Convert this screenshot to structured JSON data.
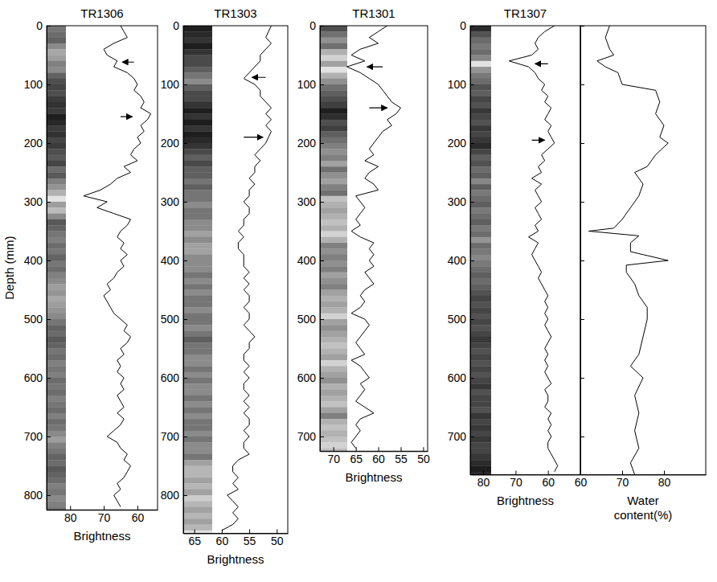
{
  "chart_data": [
    {
      "type": "corelog",
      "title": "TR1306",
      "x_label": "Brightness",
      "y_label": "Depth (mm)",
      "color": "#000000",
      "xlim": [
        87,
        54
      ],
      "xticks": [
        80,
        70,
        60
      ],
      "ylim": [
        0,
        825
      ],
      "yticks": [
        0,
        100,
        200,
        300,
        400,
        500,
        600,
        700,
        800
      ],
      "depth": [
        0,
        10,
        20,
        30,
        40,
        50,
        60,
        70,
        80,
        90,
        100,
        110,
        120,
        130,
        140,
        150,
        160,
        170,
        180,
        190,
        200,
        210,
        220,
        230,
        240,
        250,
        260,
        270,
        280,
        290,
        300,
        310,
        320,
        330,
        340,
        350,
        360,
        370,
        380,
        390,
        400,
        410,
        420,
        430,
        440,
        450,
        460,
        470,
        480,
        490,
        500,
        510,
        520,
        530,
        540,
        550,
        560,
        570,
        580,
        590,
        600,
        610,
        620,
        630,
        640,
        650,
        660,
        670,
        680,
        690,
        700,
        710,
        720,
        730,
        740,
        750,
        760,
        770,
        780,
        790,
        800,
        810,
        820
      ],
      "values": [
        65,
        64,
        63,
        67,
        70,
        69,
        66,
        67,
        63,
        61,
        60,
        61,
        59,
        58,
        59,
        56,
        57,
        59,
        58,
        60,
        59,
        61,
        62,
        60,
        64,
        62,
        66,
        68,
        71,
        76,
        69,
        72,
        67,
        62,
        63,
        65,
        66,
        64,
        65,
        63,
        65,
        64,
        66,
        67,
        69,
        68,
        70,
        69,
        68,
        67,
        65,
        63,
        64,
        62,
        63,
        65,
        64,
        66,
        65,
        66,
        64,
        65,
        64,
        66,
        65,
        64,
        66,
        64,
        65,
        67,
        69,
        66,
        65,
        63,
        64,
        62,
        63,
        64,
        66,
        65,
        67,
        66,
        65
      ],
      "arrows": [
        {
          "y": 62,
          "x_from": 61,
          "x_to": 64.5
        },
        {
          "y": 155,
          "x_from": 65,
          "x_to": 61.5
        }
      ]
    },
    {
      "type": "corelog",
      "title": "TR1303",
      "x_label": "Brightness",
      "color": "#000000",
      "xlim": [
        67,
        48
      ],
      "xticks": [
        65,
        60,
        55,
        50
      ],
      "ylim": [
        0,
        865
      ],
      "yticks": [
        0,
        100,
        200,
        300,
        400,
        500,
        600,
        700,
        800
      ],
      "depth": [
        0,
        10,
        20,
        30,
        40,
        50,
        60,
        70,
        80,
        90,
        100,
        110,
        120,
        130,
        140,
        150,
        160,
        170,
        180,
        190,
        200,
        210,
        220,
        230,
        240,
        250,
        260,
        270,
        280,
        290,
        300,
        310,
        320,
        330,
        340,
        350,
        360,
        370,
        380,
        390,
        400,
        410,
        420,
        430,
        440,
        450,
        460,
        470,
        480,
        490,
        500,
        510,
        520,
        530,
        540,
        550,
        560,
        570,
        580,
        590,
        600,
        610,
        620,
        630,
        640,
        650,
        660,
        670,
        680,
        690,
        700,
        710,
        720,
        730,
        740,
        750,
        760,
        770,
        780,
        790,
        800,
        810,
        820,
        830,
        840,
        850,
        860
      ],
      "values": [
        51,
        51.5,
        52,
        51,
        52,
        53,
        53,
        54,
        55,
        56,
        54,
        53,
        53,
        52,
        51,
        52,
        51,
        52,
        51,
        51.5,
        52,
        53,
        54,
        53,
        54,
        54,
        55,
        54,
        55,
        55,
        56,
        55,
        55,
        56,
        56,
        57,
        56,
        57,
        57,
        56,
        56,
        56,
        55,
        56,
        55,
        56,
        55,
        55,
        56,
        55,
        55,
        56,
        55,
        54,
        55,
        55,
        56,
        56,
        55,
        56,
        55,
        56,
        56,
        55,
        56,
        55,
        56,
        55,
        55,
        56,
        55,
        56,
        56,
        55,
        57,
        58,
        58,
        57,
        58,
        57,
        59,
        58,
        57,
        58,
        57,
        58,
        60
      ],
      "arrows": [
        {
          "y": 88,
          "x_from": 52,
          "x_to": 54.5
        },
        {
          "y": 190,
          "x_from": 56,
          "x_to": 52.5
        }
      ]
    },
    {
      "type": "corelog",
      "title": "TR1301",
      "x_label": "Brightness",
      "color": "#000000",
      "xlim": [
        73,
        49
      ],
      "xticks": [
        70,
        65,
        60,
        55,
        50
      ],
      "ylim": [
        0,
        725
      ],
      "yticks": [
        0,
        100,
        200,
        300,
        400,
        500,
        600,
        700
      ],
      "depth": [
        0,
        10,
        20,
        30,
        40,
        50,
        60,
        70,
        80,
        90,
        100,
        110,
        120,
        130,
        140,
        150,
        160,
        170,
        180,
        190,
        200,
        210,
        220,
        230,
        240,
        250,
        260,
        270,
        280,
        290,
        300,
        310,
        320,
        330,
        340,
        350,
        360,
        370,
        380,
        390,
        400,
        410,
        420,
        430,
        440,
        450,
        460,
        470,
        480,
        490,
        500,
        510,
        520,
        530,
        540,
        550,
        560,
        570,
        580,
        590,
        600,
        610,
        620,
        630,
        640,
        650,
        660,
        670,
        680,
        690,
        700,
        710,
        720
      ],
      "values": [
        58,
        60,
        62,
        60,
        64,
        66,
        63,
        67,
        64,
        62,
        60,
        59,
        58,
        57,
        55,
        56,
        58,
        57,
        59,
        60,
        61,
        62,
        61,
        63,
        60,
        62,
        63,
        61,
        60,
        65,
        64,
        63,
        64,
        65,
        64,
        66,
        64,
        61,
        62,
        61,
        62,
        61,
        63,
        62,
        61,
        63,
        64,
        63,
        64,
        66,
        63,
        62,
        63,
        64,
        65,
        64,
        63,
        66,
        64,
        63,
        62,
        64,
        63,
        64,
        65,
        63,
        61,
        64,
        65,
        64,
        65,
        66,
        65
      ],
      "arrows": [
        {
          "y": 70,
          "x_from": 59,
          "x_to": 62.5
        },
        {
          "y": 140,
          "x_from": 62,
          "x_to": 58
        }
      ]
    },
    {
      "type": "corelog",
      "title": "TR1307",
      "x_label": "Brightness",
      "color": "#000000",
      "xlim": [
        84,
        50
      ],
      "xticks": [
        80,
        70,
        60
      ],
      "ylim": [
        0,
        765
      ],
      "yticks": [
        0,
        100,
        200,
        300,
        400,
        500,
        600,
        700
      ],
      "depth": [
        0,
        10,
        20,
        30,
        40,
        50,
        60,
        70,
        80,
        90,
        100,
        110,
        120,
        130,
        140,
        150,
        160,
        170,
        180,
        190,
        200,
        210,
        220,
        230,
        240,
        250,
        260,
        270,
        280,
        290,
        300,
        310,
        320,
        330,
        340,
        350,
        360,
        370,
        380,
        390,
        400,
        410,
        420,
        430,
        440,
        450,
        460,
        470,
        480,
        490,
        500,
        510,
        520,
        530,
        540,
        550,
        560,
        570,
        580,
        590,
        600,
        610,
        620,
        630,
        640,
        650,
        660,
        670,
        680,
        690,
        700,
        710,
        720,
        730,
        740,
        750,
        760
      ],
      "values": [
        58,
        61,
        63,
        64,
        63,
        65,
        72,
        66,
        64,
        63,
        61,
        62,
        60,
        61,
        59,
        60,
        61,
        59,
        60,
        59,
        58,
        60,
        62,
        61,
        63,
        62,
        65,
        62,
        64,
        63,
        62,
        64,
        63,
        62,
        64,
        63,
        66,
        63,
        64,
        65,
        64,
        63,
        62,
        63,
        62,
        61,
        60,
        61,
        60,
        61,
        60,
        61,
        60,
        59,
        60,
        61,
        60,
        61,
        60,
        61,
        60,
        59,
        61,
        60,
        60,
        61,
        59,
        60,
        59,
        60,
        59,
        60,
        60,
        59,
        58,
        57,
        58
      ],
      "arrows": [
        {
          "y": 65,
          "x_from": 60,
          "x_to": 64
        },
        {
          "y": 195,
          "x_from": 65,
          "x_to": 61
        }
      ]
    },
    {
      "type": "line",
      "x_label": "Water content(%)",
      "color": "#000000",
      "tick_labels": "x",
      "xlim": [
        60,
        90
      ],
      "xticks": [
        60,
        70,
        80
      ],
      "ylim": [
        0,
        765
      ],
      "yticks": [
        0,
        100,
        200,
        300,
        400,
        500,
        600,
        700
      ],
      "depth": [
        0,
        20,
        40,
        50,
        60,
        70,
        80,
        100,
        110,
        130,
        150,
        170,
        190,
        200,
        220,
        240,
        250,
        270,
        290,
        310,
        330,
        345,
        350,
        358,
        370,
        385,
        400,
        408,
        420,
        440,
        460,
        480,
        500,
        530,
        560,
        580,
        600,
        630,
        660,
        690,
        720,
        745,
        765
      ],
      "values": [
        67,
        66,
        67,
        68,
        64,
        66,
        69,
        70,
        78,
        79,
        78,
        80,
        79,
        81,
        78,
        76,
        73,
        75,
        74,
        72,
        70,
        68,
        62,
        74,
        72,
        72,
        81,
        71,
        71,
        73,
        74,
        76,
        76,
        75,
        74,
        72,
        75,
        73,
        74,
        73,
        74,
        72,
        73
      ]
    }
  ]
}
